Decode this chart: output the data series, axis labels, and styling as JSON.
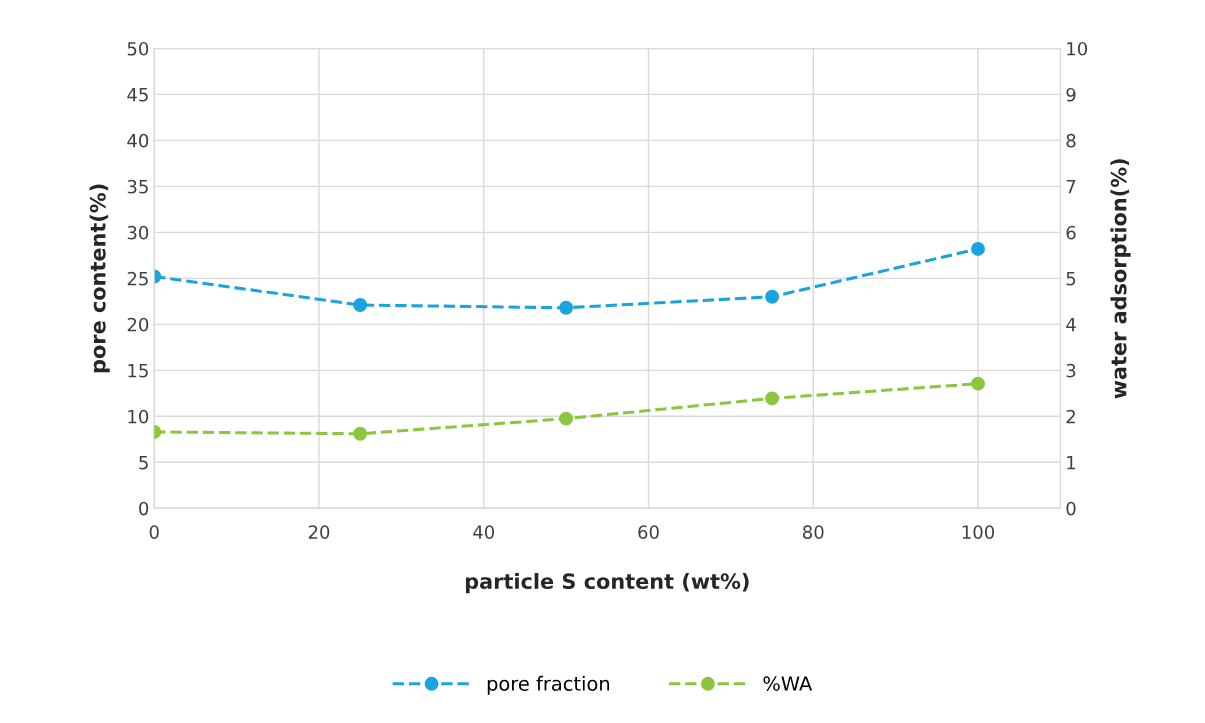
{
  "chart_data": {
    "type": "line",
    "xlabel": "particle S content (wt%)",
    "ylabel": "pore content(%)",
    "y2label": "water adsorption(%)",
    "x": [
      0,
      25,
      50,
      75,
      100
    ],
    "series": [
      {
        "name": "pore fraction",
        "color": "#1aa3e0",
        "values": [
          25.2,
          22.1,
          21.8,
          23.0,
          28.2
        ]
      },
      {
        "name": "%WA",
        "color": "#8cc63f",
        "axis": "y2",
        "values": [
          1.66,
          1.62,
          1.95,
          2.39,
          2.71
        ]
      }
    ],
    "xlim": [
      0,
      110
    ],
    "xticks": [
      0,
      20,
      40,
      60,
      80,
      100
    ],
    "ylim": [
      0,
      50
    ],
    "yticks": [
      0,
      5,
      10,
      15,
      20,
      25,
      30,
      35,
      40,
      45,
      50
    ],
    "y2lim": [
      0,
      10
    ],
    "y2ticks": [
      0,
      1,
      2,
      3,
      4,
      5,
      6,
      7,
      8,
      9,
      10
    ],
    "grid": true,
    "legend": "bottom",
    "marker": "circle",
    "line_style": "dashed"
  }
}
